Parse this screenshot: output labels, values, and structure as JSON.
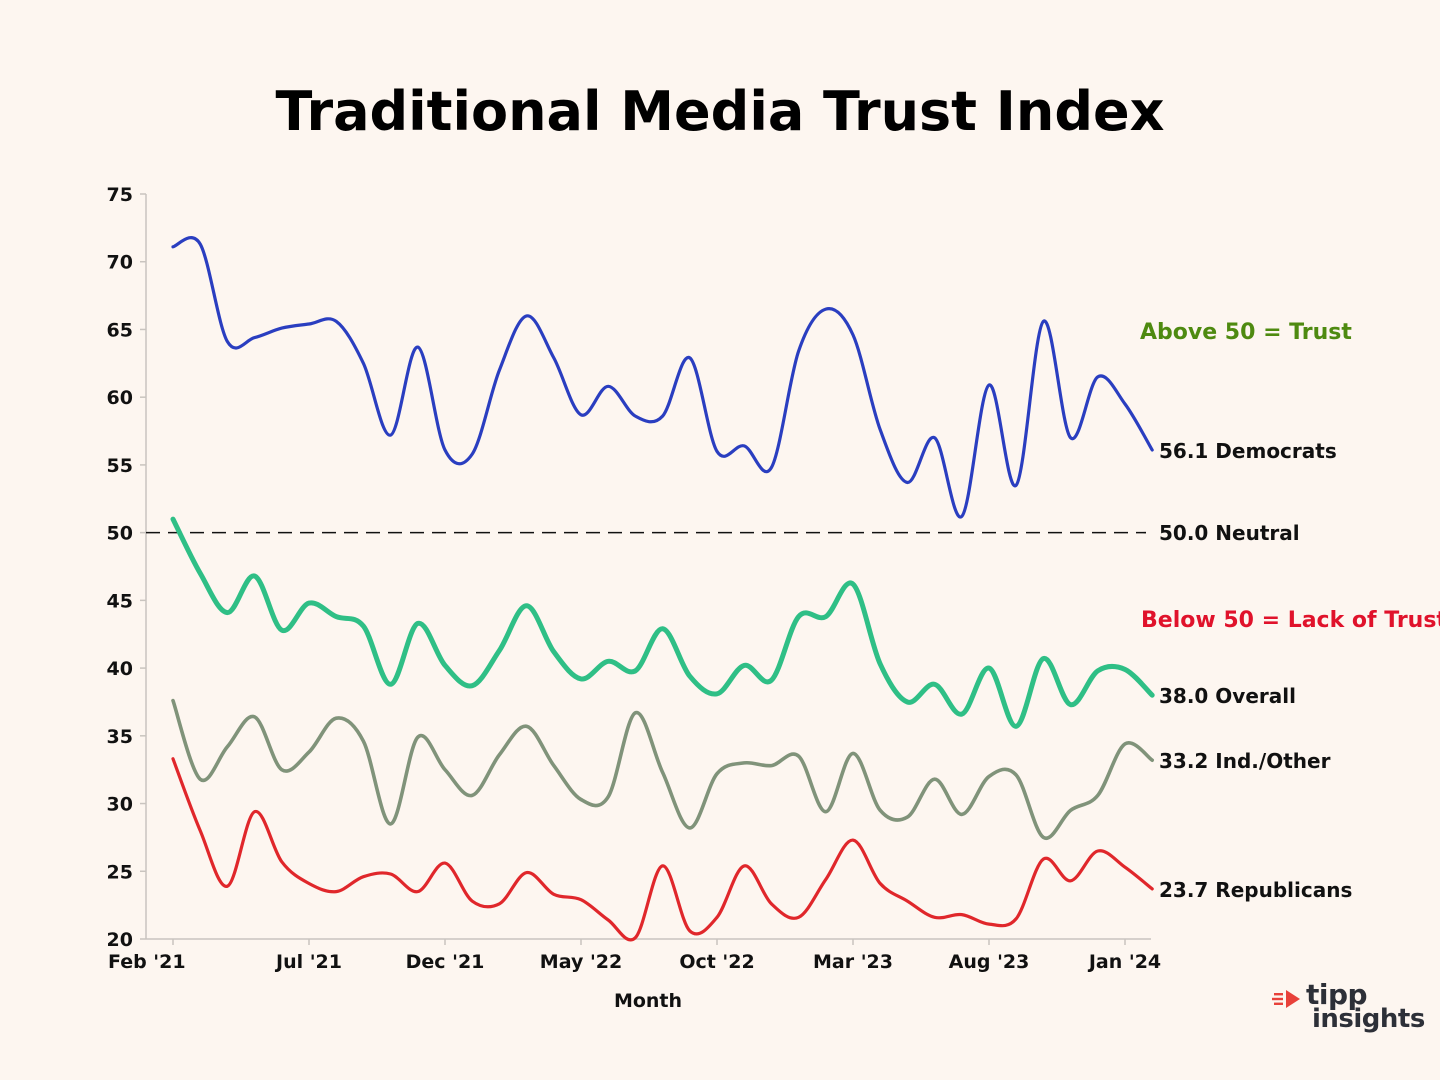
{
  "colors": {
    "background": "#fdf6f0",
    "democrats": "#2a3ec0",
    "overall": "#2fbf86",
    "independents": "#80937a",
    "republicans": "#e0272b",
    "trust_text": "#4e8a10",
    "lack_text": "#e0122b"
  },
  "annotations": {
    "trust": "Above 50 = Trust",
    "lack": "Below 50 = Lack of Trust"
  },
  "logo": {
    "word1": "tipp",
    "word2": "insights",
    "icon": "tipp-arrow-icon"
  },
  "chart_data": {
    "type": "line",
    "title": "Traditional Media Trust Index",
    "xlabel": "Month",
    "ylabel": "",
    "ylim": [
      20,
      75
    ],
    "yticks": [
      20,
      25,
      30,
      35,
      40,
      45,
      50,
      55,
      60,
      65,
      70,
      75
    ],
    "xlim": [
      0,
      37
    ],
    "x_ticks": [
      {
        "i": 0,
        "label": "Feb '21"
      },
      {
        "i": 5,
        "label": "Jul '21"
      },
      {
        "i": 10,
        "label": "Dec '21"
      },
      {
        "i": 15,
        "label": "May '22"
      },
      {
        "i": 20,
        "label": "Oct '22"
      },
      {
        "i": 25,
        "label": "Mar '23"
      },
      {
        "i": 30,
        "label": "Aug '23"
      },
      {
        "i": 35,
        "label": "Jan '24"
      }
    ],
    "reference_line": {
      "value": 50.0,
      "label": "50.0 Neutral"
    },
    "series": [
      {
        "name": "Democrats",
        "end_label": "56.1 Democrats",
        "color": "#2a3ec0",
        "values": [
          71.1,
          71.3,
          64.1,
          64.4,
          65.1,
          65.4,
          65.6,
          62.5,
          57.2,
          63.7,
          56.1,
          55.8,
          62.0,
          66.0,
          62.9,
          58.7,
          60.8,
          58.6,
          58.6,
          62.9,
          56.0,
          56.4,
          54.8,
          63.4,
          66.5,
          64.6,
          57.6,
          53.7,
          57.0,
          51.2,
          60.9,
          53.5,
          65.6,
          57.0,
          61.5,
          59.5,
          56.1
        ]
      },
      {
        "name": "Overall",
        "end_label": "38.0 Overall",
        "color": "#2fbf86",
        "values": [
          51.0,
          47.0,
          44.1,
          46.8,
          42.8,
          44.8,
          43.8,
          43.1,
          38.8,
          43.3,
          40.2,
          38.7,
          41.3,
          44.6,
          41.2,
          39.2,
          40.5,
          39.8,
          42.9,
          39.4,
          38.1,
          40.2,
          39.1,
          43.8,
          43.8,
          46.2,
          40.3,
          37.5,
          38.8,
          36.6,
          40.0,
          35.7,
          40.7,
          37.3,
          39.8,
          39.9,
          38.0
        ]
      },
      {
        "name": "Ind./Other",
        "end_label": "33.2 Ind./Other",
        "color": "#80937a",
        "values": [
          37.6,
          31.8,
          34.2,
          36.4,
          32.5,
          33.8,
          36.3,
          34.6,
          28.5,
          34.9,
          32.5,
          30.6,
          33.6,
          35.7,
          32.8,
          30.3,
          30.5,
          36.7,
          32.3,
          28.2,
          32.2,
          33.0,
          32.8,
          33.5,
          29.4,
          33.7,
          29.5,
          29.0,
          31.8,
          29.2,
          32.0,
          32.1,
          27.5,
          29.5,
          30.6,
          34.4,
          33.2
        ]
      },
      {
        "name": "Republicans",
        "end_label": "23.7 Republicans",
        "color": "#e0272b",
        "values": [
          33.3,
          28.0,
          23.9,
          29.4,
          25.7,
          24.1,
          23.5,
          24.6,
          24.8,
          23.5,
          25.6,
          22.8,
          22.6,
          24.9,
          23.3,
          22.9,
          21.4,
          20.1,
          25.4,
          20.6,
          21.6,
          25.4,
          22.6,
          21.6,
          24.4,
          27.3,
          24.1,
          22.8,
          21.6,
          21.8,
          21.1,
          21.5,
          25.9,
          24.3,
          26.5,
          25.3,
          23.7
        ]
      }
    ]
  }
}
